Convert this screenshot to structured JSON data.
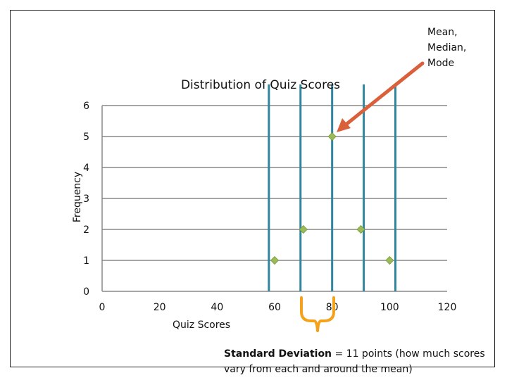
{
  "chart_data": {
    "type": "scatter",
    "title": "Distribution of Quiz Scores",
    "xlabel": "Quiz Scores",
    "ylabel": "Frequency",
    "xlim": [
      0,
      120
    ],
    "ylim": [
      0,
      6
    ],
    "x_ticks": [
      "0",
      "20",
      "40",
      "60",
      "80",
      "100",
      "120"
    ],
    "y_ticks": [
      "0",
      "1",
      "2",
      "3",
      "4",
      "5",
      "6"
    ],
    "grid": true,
    "points": [
      {
        "x": 60,
        "y": 1
      },
      {
        "x": 70,
        "y": 2
      },
      {
        "x": 80,
        "y": 5
      },
      {
        "x": 90,
        "y": 2
      },
      {
        "x": 100,
        "y": 1
      }
    ],
    "vertical_lines": [
      58,
      69,
      80,
      91,
      102
    ],
    "colors": {
      "points": "#9bbb59",
      "vlines": "#31859c",
      "grid": "#888888",
      "arrow": "#d9603b",
      "brace": "#f4a21c"
    },
    "annotations": {
      "mean_label": [
        "Mean,",
        "Median,",
        "Mode"
      ],
      "sd_bold": "Standard Deviation",
      "sd_rest_line1": " = 11 points (how much scores",
      "sd_line2": "vary from each and around the mean)"
    }
  }
}
